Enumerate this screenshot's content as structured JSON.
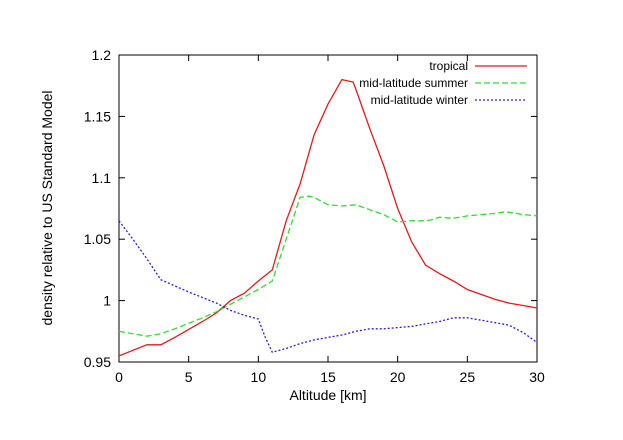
{
  "chart_data": {
    "type": "line",
    "title": "",
    "xlabel": "Altitude [km]",
    "ylabel": "density relative to US Standard Model",
    "xlim": [
      0,
      30
    ],
    "ylim": [
      0.95,
      1.2
    ],
    "x_ticks": [
      0,
      5,
      10,
      15,
      20,
      25,
      30
    ],
    "x_tick_labels": [
      "0",
      "5",
      "10",
      "15",
      "20",
      "25",
      "30"
    ],
    "y_ticks": [
      0.95,
      1.0,
      1.05,
      1.1,
      1.15,
      1.2
    ],
    "y_tick_labels": [
      "0.95",
      "1",
      "1.05",
      "1.1",
      "1.15",
      "1.2"
    ],
    "grid": false,
    "legend_position": "top-right",
    "series": [
      {
        "name": "tropical",
        "color": "#e41a1c",
        "dash": "solid",
        "x": [
          0,
          2,
          3,
          4,
          6,
          7,
          8,
          9,
          10,
          11,
          12,
          13,
          14,
          15,
          16,
          16.8,
          17,
          18,
          19,
          20,
          21,
          22,
          23,
          24,
          25,
          26,
          27,
          28,
          29,
          30
        ],
        "y": [
          0.955,
          0.964,
          0.964,
          0.97,
          0.983,
          0.99,
          1.0,
          1.006,
          1.016,
          1.025,
          1.065,
          1.095,
          1.135,
          1.16,
          1.18,
          1.178,
          1.172,
          1.14,
          1.11,
          1.075,
          1.048,
          1.029,
          1.022,
          1.016,
          1.009,
          1.005,
          1.001,
          0.998,
          0.996,
          0.994
        ]
      },
      {
        "name": "mid-latitude summer",
        "color": "#33dd33",
        "dash": "6,3",
        "x": [
          0,
          2,
          3,
          4,
          6,
          7,
          8,
          9,
          10,
          11,
          12,
          13,
          13.7,
          14,
          15,
          16,
          17,
          18,
          19,
          20,
          21,
          22,
          22.5,
          23,
          24,
          25,
          26,
          27,
          27.5,
          28,
          29,
          30
        ],
        "y": [
          0.975,
          0.971,
          0.973,
          0.977,
          0.986,
          0.991,
          0.997,
          1.003,
          1.009,
          1.016,
          1.05,
          1.084,
          1.085,
          1.084,
          1.078,
          1.077,
          1.078,
          1.074,
          1.07,
          1.064,
          1.065,
          1.065,
          1.066,
          1.068,
          1.067,
          1.069,
          1.07,
          1.071,
          1.072,
          1.072,
          1.07,
          1.069
        ]
      },
      {
        "name": "mid-latitude winter",
        "color": "#2222dd",
        "dash": "2,2",
        "x": [
          0,
          1,
          2,
          3,
          5,
          7,
          8,
          9,
          10,
          10.5,
          11,
          12,
          13,
          14,
          15,
          16,
          17,
          18,
          19,
          20,
          21,
          22,
          23,
          24,
          25,
          26,
          27,
          28,
          29,
          30
        ],
        "y": [
          1.065,
          1.05,
          1.034,
          1.017,
          1.007,
          0.998,
          0.992,
          0.988,
          0.985,
          0.97,
          0.958,
          0.961,
          0.965,
          0.968,
          0.97,
          0.972,
          0.975,
          0.977,
          0.977,
          0.978,
          0.979,
          0.981,
          0.983,
          0.986,
          0.986,
          0.984,
          0.982,
          0.98,
          0.974,
          0.966
        ]
      }
    ]
  }
}
